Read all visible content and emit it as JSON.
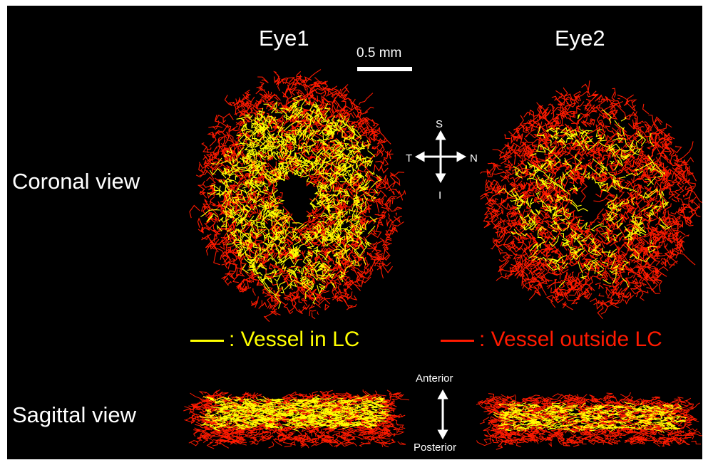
{
  "figure": {
    "eyes": [
      "Eye1",
      "Eye2"
    ],
    "scale_bar": {
      "label": "0.5 mm"
    },
    "views": {
      "coronal": "Coronal view",
      "sagittal": "Sagittal view"
    },
    "orientation_coronal": {
      "superior": "S",
      "inferior": "I",
      "temporal": "T",
      "nasal": "N"
    },
    "orientation_sagittal": {
      "top": "Anterior",
      "bottom": "Posterior"
    },
    "legend": [
      {
        "label": ": Vessel in LC",
        "color": "#ffff00"
      },
      {
        "label": ": Vessel outside LC",
        "color": "#ff1a00"
      }
    ],
    "colors": {
      "background": "#000000",
      "vessel_in_lc": "#ffff00",
      "vessel_outside_lc": "#ff1a00"
    }
  }
}
